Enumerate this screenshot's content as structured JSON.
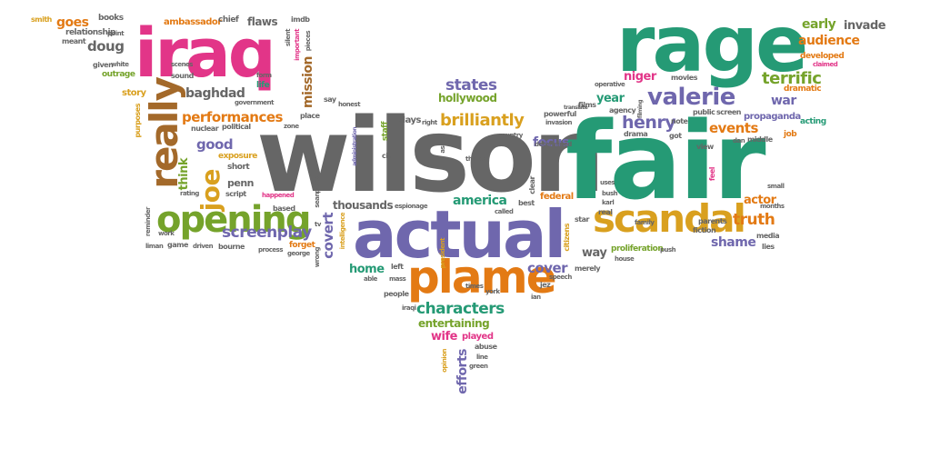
{
  "palette": {
    "orange": "#e37a14",
    "green": "#259a75",
    "purple": "#6f67ad",
    "pink": "#e23588",
    "olive": "#75a32b",
    "mustard": "#d9a01f",
    "gray": "#666666",
    "brown": "#a3692a"
  },
  "words": [
    {
      "text": "wilson",
      "color": "gray"
    },
    {
      "text": "fair",
      "color": "green"
    },
    {
      "text": "actual",
      "color": "purple"
    },
    {
      "text": "rage",
      "color": "green"
    },
    {
      "text": "iraq",
      "color": "pink"
    },
    {
      "text": "plame",
      "color": "orange"
    },
    {
      "text": "opening",
      "color": "olive"
    },
    {
      "text": "scandal",
      "color": "mustard"
    },
    {
      "text": "really",
      "color": "brown"
    },
    {
      "text": "valerie",
      "color": "purple"
    },
    {
      "text": "joe",
      "color": "mustard"
    },
    {
      "text": "performances",
      "color": "orange"
    },
    {
      "text": "brilliantly",
      "color": "mustard"
    },
    {
      "text": "screenplay",
      "color": "purple"
    },
    {
      "text": "characters",
      "color": "green"
    },
    {
      "text": "henry",
      "color": "purple"
    },
    {
      "text": "truth",
      "color": "orange"
    },
    {
      "text": "states",
      "color": "purple"
    },
    {
      "text": "terrific",
      "color": "olive"
    },
    {
      "text": "events",
      "color": "orange"
    },
    {
      "text": "focus",
      "color": "purple"
    },
    {
      "text": "audience",
      "color": "orange"
    },
    {
      "text": "early",
      "color": "olive"
    },
    {
      "text": "invade",
      "color": "gray"
    },
    {
      "text": "baghdad",
      "color": "gray"
    },
    {
      "text": "good",
      "color": "purple"
    },
    {
      "text": "war",
      "color": "purple"
    },
    {
      "text": "shame",
      "color": "purple"
    },
    {
      "text": "actor",
      "color": "orange"
    },
    {
      "text": "cover",
      "color": "purple"
    },
    {
      "text": "america",
      "color": "green"
    },
    {
      "text": "hollywood",
      "color": "olive"
    },
    {
      "text": "doug",
      "color": "gray"
    },
    {
      "text": "goes",
      "color": "orange"
    },
    {
      "text": "niger",
      "color": "pink"
    },
    {
      "text": "year",
      "color": "green"
    },
    {
      "text": "covert",
      "color": "purple"
    },
    {
      "text": "mission",
      "color": "brown"
    },
    {
      "text": "thousands",
      "color": "gray"
    },
    {
      "text": "entertaining",
      "color": "olive"
    },
    {
      "text": "wife",
      "color": "pink"
    },
    {
      "text": "played",
      "color": "pink"
    },
    {
      "text": "home",
      "color": "green"
    },
    {
      "text": "way",
      "color": "gray"
    },
    {
      "text": "efforts",
      "color": "purple"
    },
    {
      "text": "think",
      "color": "olive"
    },
    {
      "text": "penn",
      "color": "gray"
    },
    {
      "text": "flaws",
      "color": "gray"
    },
    {
      "text": "story",
      "color": "mustard"
    },
    {
      "text": "dramatic",
      "color": "orange"
    },
    {
      "text": "acting",
      "color": "green"
    },
    {
      "text": "developed",
      "color": "orange"
    },
    {
      "text": "propaganda",
      "color": "purple"
    },
    {
      "text": "plays",
      "color": "gray"
    },
    {
      "text": "job",
      "color": "orange"
    },
    {
      "text": "ambassador",
      "color": "orange"
    },
    {
      "text": "relationship",
      "color": "gray"
    },
    {
      "text": "books",
      "color": "gray"
    },
    {
      "text": "chief",
      "color": "gray"
    },
    {
      "text": "smith",
      "color": "mustard"
    },
    {
      "text": "meant",
      "color": "gray"
    },
    {
      "text": "point",
      "color": "gray"
    },
    {
      "text": "scenes",
      "color": "gray"
    },
    {
      "text": "given",
      "color": "gray"
    },
    {
      "text": "white",
      "color": "gray"
    },
    {
      "text": "outrage",
      "color": "olive"
    },
    {
      "text": "sound",
      "color": "gray"
    },
    {
      "text": "life",
      "color": "green"
    },
    {
      "text": "government",
      "color": "gray"
    },
    {
      "text": "political",
      "color": "gray"
    },
    {
      "text": "nuclear",
      "color": "gray"
    },
    {
      "text": "purposes",
      "color": "mustard"
    },
    {
      "text": "short",
      "color": "gray"
    },
    {
      "text": "exposure",
      "color": "mustard"
    },
    {
      "text": "script",
      "color": "gray"
    },
    {
      "text": "rating",
      "color": "gray"
    },
    {
      "text": "happened",
      "color": "pink"
    },
    {
      "text": "based",
      "color": "gray"
    },
    {
      "text": "zone",
      "color": "gray"
    },
    {
      "text": "place",
      "color": "gray"
    },
    {
      "text": "honest",
      "color": "gray"
    },
    {
      "text": "say",
      "color": "gray"
    },
    {
      "text": "staff",
      "color": "olive"
    },
    {
      "text": "cia",
      "color": "gray"
    },
    {
      "text": "espionage",
      "color": "gray"
    },
    {
      "text": "aside",
      "color": "gray"
    },
    {
      "text": "right",
      "color": "gray"
    },
    {
      "text": "country",
      "color": "gray"
    },
    {
      "text": "things",
      "color": "gray"
    },
    {
      "text": "determined",
      "color": "gray"
    },
    {
      "text": "clear",
      "color": "gray"
    },
    {
      "text": "federal",
      "color": "orange"
    },
    {
      "text": "best",
      "color": "gray"
    },
    {
      "text": "called",
      "color": "gray"
    },
    {
      "text": "invasion",
      "color": "gray"
    },
    {
      "text": "powerful",
      "color": "gray"
    },
    {
      "text": "films",
      "color": "gray"
    },
    {
      "text": "agency",
      "color": "gray"
    },
    {
      "text": "operative",
      "color": "gray"
    },
    {
      "text": "movies",
      "color": "gray"
    },
    {
      "text": "drama",
      "color": "gray"
    },
    {
      "text": "got",
      "color": "gray"
    },
    {
      "text": "note",
      "color": "gray"
    },
    {
      "text": "public",
      "color": "gray"
    },
    {
      "text": "screen",
      "color": "gray"
    },
    {
      "text": "view",
      "color": "gray"
    },
    {
      "text": "dan",
      "color": "gray"
    },
    {
      "text": "middle",
      "color": "gray"
    },
    {
      "text": "feel",
      "color": "pink"
    },
    {
      "text": "small",
      "color": "gray"
    },
    {
      "text": "months",
      "color": "gray"
    },
    {
      "text": "parents",
      "color": "gray"
    },
    {
      "text": "fiction",
      "color": "gray"
    },
    {
      "text": "media",
      "color": "gray"
    },
    {
      "text": "lies",
      "color": "gray"
    },
    {
      "text": "family",
      "color": "gray"
    },
    {
      "text": "proliferation",
      "color": "olive"
    },
    {
      "text": "push",
      "color": "gray"
    },
    {
      "text": "house",
      "color": "gray"
    },
    {
      "text": "star",
      "color": "gray"
    },
    {
      "text": "real",
      "color": "gray"
    },
    {
      "text": "uses",
      "color": "gray"
    },
    {
      "text": "bush",
      "color": "gray"
    },
    {
      "text": "karl",
      "color": "gray"
    },
    {
      "text": "citizens",
      "color": "mustard"
    },
    {
      "text": "merely",
      "color": "gray"
    },
    {
      "text": "speech",
      "color": "gray"
    },
    {
      "text": "jez",
      "color": "gray"
    },
    {
      "text": "ian",
      "color": "gray"
    },
    {
      "text": "times",
      "color": "gray"
    },
    {
      "text": "york",
      "color": "gray"
    },
    {
      "text": "president",
      "color": "mustard"
    },
    {
      "text": "left",
      "color": "gray"
    },
    {
      "text": "mass",
      "color": "gray"
    },
    {
      "text": "able",
      "color": "gray"
    },
    {
      "text": "people",
      "color": "gray"
    },
    {
      "text": "iraqi",
      "color": "gray"
    },
    {
      "text": "abuse",
      "color": "gray"
    },
    {
      "text": "line",
      "color": "gray"
    },
    {
      "text": "green",
      "color": "gray"
    },
    {
      "text": "opinion",
      "color": "mustard"
    },
    {
      "text": "intelligence",
      "color": "mustard"
    },
    {
      "text": "wrong",
      "color": "gray"
    },
    {
      "text": "tv",
      "color": "gray"
    },
    {
      "text": "george",
      "color": "gray"
    },
    {
      "text": "forget",
      "color": "orange"
    },
    {
      "text": "process",
      "color": "gray"
    },
    {
      "text": "bourne",
      "color": "gray"
    },
    {
      "text": "driven",
      "color": "gray"
    },
    {
      "text": "game",
      "color": "gray"
    },
    {
      "text": "liman",
      "color": "gray"
    },
    {
      "text": "reminder",
      "color": "gray"
    },
    {
      "text": "work",
      "color": "gray"
    },
    {
      "text": "piece",
      "color": "gray"
    },
    {
      "text": "sean",
      "color": "gray"
    },
    {
      "text": "imdb",
      "color": "gray"
    },
    {
      "text": "silent",
      "color": "gray"
    },
    {
      "text": "important",
      "color": "pink"
    },
    {
      "text": "pieces",
      "color": "gray"
    },
    {
      "text": "administration",
      "color": "purple"
    },
    {
      "text": "form",
      "color": "gray"
    },
    {
      "text": "claimed",
      "color": "pink"
    },
    {
      "text": "filming",
      "color": "gray"
    },
    {
      "text": "translate",
      "color": "gray"
    }
  ]
}
